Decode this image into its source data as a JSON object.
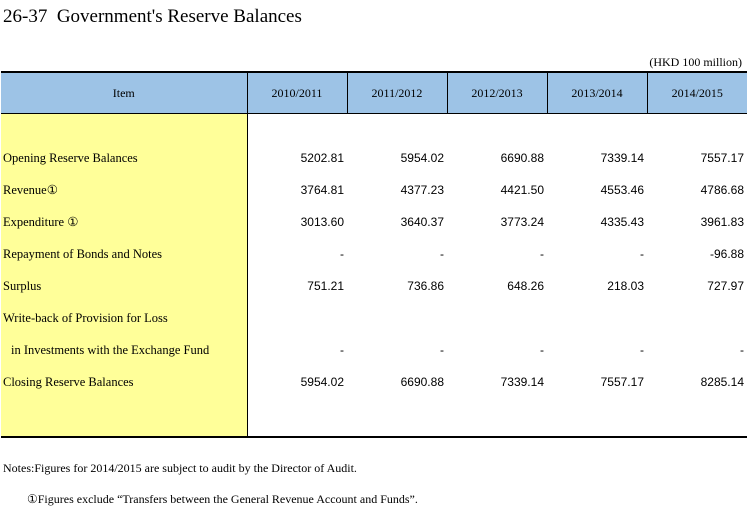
{
  "title": "26-37  Government's Reserve Balances",
  "unit": "(HKD 100 million)",
  "table": {
    "header": [
      "Item",
      "2010/2011",
      "2011/2012",
      "2012/2013",
      "2013/2014",
      "2014/2015"
    ],
    "rows": [
      {
        "label": "Opening Reserve Balances",
        "values": [
          "5202.81",
          "5954.02",
          "6690.88",
          "7339.14",
          "7557.17"
        ]
      },
      {
        "label": "Revenue①",
        "values": [
          "3764.81",
          "4377.23",
          "4421.50",
          "4553.46",
          "4786.68"
        ]
      },
      {
        "label": "Expenditure ①",
        "values": [
          "3013.60",
          "3640.37",
          "3773.24",
          "4335.43",
          "3961.83"
        ]
      },
      {
        "label": "Repayment of Bonds and Notes",
        "values": [
          "-",
          "-",
          "-",
          "-",
          "-96.88"
        ]
      },
      {
        "label": "Surplus",
        "values": [
          "751.21",
          "736.86",
          "648.26",
          "218.03",
          "727.97"
        ]
      },
      {
        "label": "Write-back of Provision for Loss",
        "values": [
          "",
          "",
          "",
          "",
          ""
        ]
      },
      {
        "label": "in Investments with the Exchange Fund",
        "values": [
          "-",
          "-",
          "-",
          "-",
          "-"
        ]
      },
      {
        "label": "Closing Reserve Balances",
        "values": [
          "5954.02",
          "6690.88",
          "7339.14",
          "7557.17",
          "8285.14"
        ]
      }
    ]
  },
  "notes": [
    "Notes:Figures for 2014/2015 are subject to audit by the Director of Audit.",
    "①Figures exclude “Transfers between the General Revenue Account and Funds”."
  ]
}
